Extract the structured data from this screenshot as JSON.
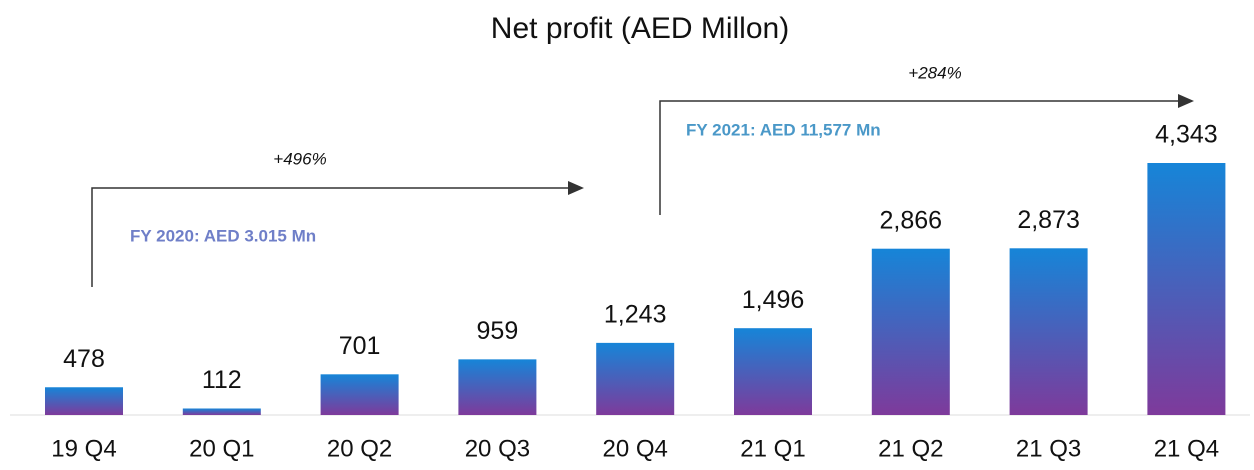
{
  "chart_data": {
    "type": "bar",
    "title": "Net profit (AED Millon)",
    "categories": [
      "19 Q4",
      "20 Q1",
      "20 Q2",
      "20 Q3",
      "20 Q4",
      "21 Q1",
      "21 Q2",
      "21 Q3",
      "21 Q4"
    ],
    "values": [
      478,
      112,
      701,
      959,
      1243,
      1496,
      2866,
      2873,
      4343
    ],
    "value_labels": [
      "478",
      "112",
      "701",
      "959",
      "1,243",
      "1,496",
      "2,866",
      "2,873",
      "4,343"
    ],
    "gradient": [
      "#1685d8",
      "#7e3a9b"
    ],
    "annotations": [
      "+496%",
      "FY 2020: AED 3.015 Mn",
      "+284%",
      "FY 2021: AED 11,577 Mn"
    ]
  }
}
